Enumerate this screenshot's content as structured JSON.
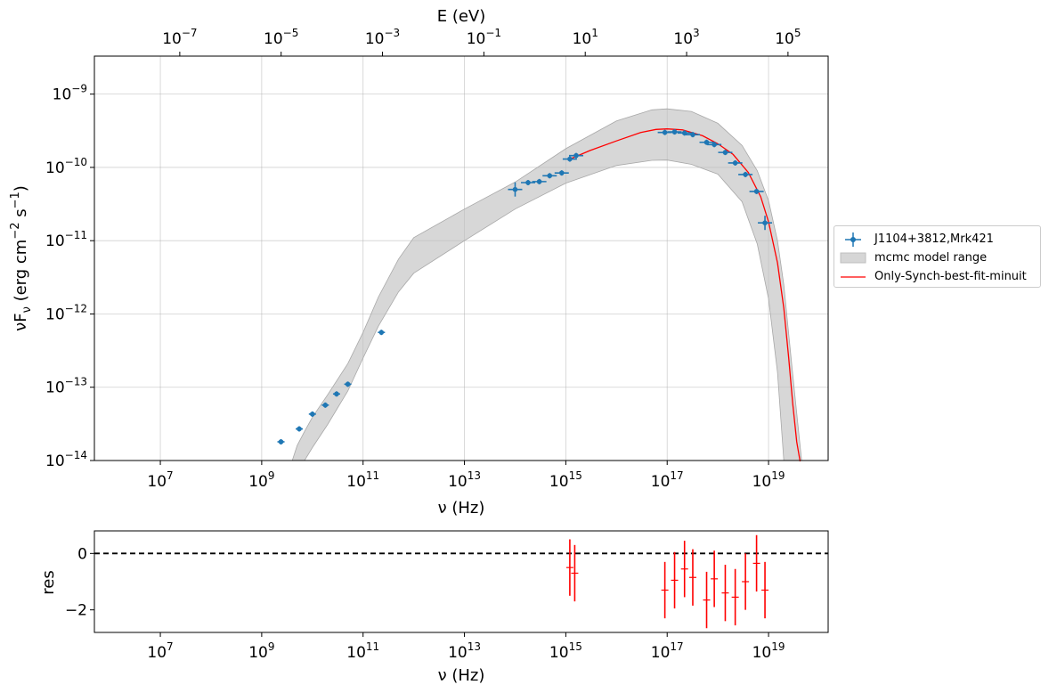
{
  "chart_data": [
    {
      "type": "scatter",
      "title": "",
      "xlabel": "ν  (Hz)",
      "ylabel": "νF_ν   (erg cm^-2  s^-1)",
      "top_xlabel": "E (eV)",
      "xscale": "log",
      "yscale": "log",
      "xlim": [
        500000.0,
        1.5e+20
      ],
      "ylim": [
        1e-14,
        3.3e-09
      ],
      "grid": true,
      "legend_position": "right, outside plot",
      "x_ticks": [
        "10^7",
        "10^9",
        "10^11",
        "10^13",
        "10^15",
        "10^17",
        "10^19"
      ],
      "y_ticks": [
        "10^-14",
        "10^-13",
        "10^-12",
        "10^-11",
        "10^-10",
        "10^-9"
      ],
      "top_x_ticks": [
        "10^-7",
        "10^-5",
        "10^-3",
        "10^-1",
        "10^1",
        "10^3",
        "10^5"
      ],
      "series": [
        {
          "name": "J1104+3812,Mrk421",
          "kind": "errorbar-points",
          "color": "#1f77b4",
          "points": [
            {
              "x": 2400000000.0,
              "y": 1.8e-14
            },
            {
              "x": 5500000000.0,
              "y": 2.7e-14
            },
            {
              "x": 10000000000.0,
              "y": 4.3e-14
            },
            {
              "x": 18000000000.0,
              "y": 5.7e-14
            },
            {
              "x": 30000000000.0,
              "y": 8.1e-14
            },
            {
              "x": 50000000000.0,
              "y": 1.1e-13
            },
            {
              "x": 230000000000.0,
              "y": 5.6e-13
            },
            {
              "x": 100000000000000.0,
              "y": 5e-11
            },
            {
              "x": 180000000000000.0,
              "y": 6.2e-11
            },
            {
              "x": 300000000000000.0,
              "y": 6.4e-11
            },
            {
              "x": 480000000000000.0,
              "y": 7.7e-11
            },
            {
              "x": 830000000000000.0,
              "y": 8.4e-11
            },
            {
              "x": 1200000000000000.0,
              "y": 1.3e-10
            },
            {
              "x": 1600000000000000.0,
              "y": 1.45e-10
            },
            {
              "x": 9e+16,
              "y": 3e-10
            },
            {
              "x": 1.4e+17,
              "y": 3.05e-10
            },
            {
              "x": 2.2e+17,
              "y": 2.95e-10
            },
            {
              "x": 3.2e+17,
              "y": 2.8e-10
            },
            {
              "x": 6e+17,
              "y": 2.2e-10
            },
            {
              "x": 8.5e+17,
              "y": 2.05e-10
            },
            {
              "x": 1.4e+18,
              "y": 1.6e-10
            },
            {
              "x": 2.2e+18,
              "y": 1.15e-10
            },
            {
              "x": 3.5e+18,
              "y": 8e-11
            },
            {
              "x": 5.8e+18,
              "y": 4.7e-11
            },
            {
              "x": 8.5e+18,
              "y": 1.75e-11
            }
          ]
        },
        {
          "name": "mcmc model range",
          "kind": "band",
          "color": "#bfbfbf",
          "x": [
            4000000000.0,
            5000000000.0,
            7000000000.0,
            10000000000.0,
            20000000000.0,
            50000000000.0,
            100000000000.0,
            200000000000.0,
            500000000000.0,
            1000000000000.0,
            10000000000000.0,
            100000000000000.0,
            1000000000000000.0,
            1e+16,
            5e+16,
            1e+17,
            3e+17,
            1e+18,
            3e+18,
            6e+18,
            1e+19,
            1.5e+19,
            2e+19,
            3e+19,
            4.5e+19
          ],
          "upper": [
            1e-14,
            1.6e-14,
            2.5e-14,
            3.9e-14,
            7.9e-14,
            2.1e-13,
            5.6e-13,
            1.7e-12,
            5.6e-12,
            1.1e-11,
            2.7e-11,
            6.3e-11,
            1.8e-10,
            4.3e-10,
            6.1e-10,
            6.3e-10,
            5.8e-10,
            4e-10,
            2e-10,
            9e-11,
            3.5e-11,
            1e-11,
            2.5e-12,
            1.5e-13,
            1e-14
          ],
          "lower": [
            null,
            null,
            1e-14,
            1.5e-14,
            3.1e-14,
            8.9e-14,
            2.5e-13,
            6.8e-13,
            2e-12,
            3.6e-12,
            1e-11,
            2.7e-11,
            6.1e-11,
            1.06e-10,
            1.25e-10,
            1.26e-10,
            1.1e-10,
            8.1e-11,
            3.4e-11,
            9e-12,
            1.6e-12,
            1.6e-13,
            1e-14,
            null,
            null
          ]
        },
        {
          "name": "Only-Synch-best-fit-minuit",
          "kind": "line",
          "color": "#ff0000",
          "x": [
            1200000000000000.0,
            3000000000000000.0,
            1e+16,
            3e+16,
            6e+16,
            1e+17,
            2e+17,
            5e+17,
            1e+18,
            2e+18,
            4e+18,
            7e+18,
            1e+19,
            1.5e+19,
            2e+19,
            2.5e+19,
            3e+19,
            3.6e+19,
            4.2e+19
          ],
          "y": [
            1.3e-10,
            1.7e-10,
            2.3e-10,
            3e-10,
            3.3e-10,
            3.35e-10,
            3.25e-10,
            2.7e-10,
            2.1e-10,
            1.5e-10,
            8.5e-11,
            4e-11,
            1.8e-11,
            5e-12,
            1.2e-12,
            2.5e-13,
            6e-14,
            1.8e-14,
            8e-15
          ]
        }
      ]
    },
    {
      "type": "scatter",
      "title": "",
      "xlabel": "ν  (Hz)",
      "ylabel": "res",
      "xscale": "log",
      "xlim": [
        500000.0,
        1.5e+20
      ],
      "ylim": [
        -2.8,
        0.8
      ],
      "grid": false,
      "x_ticks": [
        "10^7",
        "10^9",
        "10^11",
        "10^13",
        "10^15",
        "10^17",
        "10^19"
      ],
      "y_ticks": [
        "0",
        "−2"
      ],
      "reference_line": {
        "y": 0,
        "style": "dashed",
        "color": "#000000"
      },
      "series": [
        {
          "name": "",
          "kind": "errorbar-points",
          "color": "#ff0000",
          "points": [
            {
              "x": 1200000000000000.0,
              "y": -0.5,
              "err": 1.0
            },
            {
              "x": 1500000000000000.0,
              "y": -0.7,
              "err": 1.0
            },
            {
              "x": 9e+16,
              "y": -1.3,
              "err": 1.0
            },
            {
              "x": 1.4e+17,
              "y": -0.95,
              "err": 1.0
            },
            {
              "x": 2.2e+17,
              "y": -0.55,
              "err": 1.0
            },
            {
              "x": 3.2e+17,
              "y": -0.85,
              "err": 1.0
            },
            {
              "x": 6e+17,
              "y": -1.65,
              "err": 1.0
            },
            {
              "x": 8.5e+17,
              "y": -0.9,
              "err": 1.0
            },
            {
              "x": 1.4e+18,
              "y": -1.4,
              "err": 1.0
            },
            {
              "x": 2.2e+18,
              "y": -1.55,
              "err": 1.0
            },
            {
              "x": 3.5e+18,
              "y": -1.0,
              "err": 1.0
            },
            {
              "x": 5.8e+18,
              "y": -0.35,
              "err": 1.0
            },
            {
              "x": 8.5e+18,
              "y": -1.3,
              "err": 1.0
            }
          ]
        }
      ]
    }
  ]
}
